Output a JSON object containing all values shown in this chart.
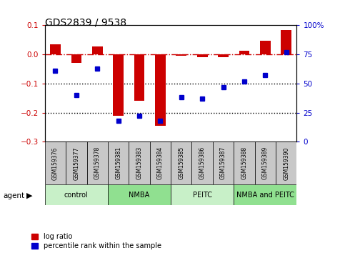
{
  "title": "GDS2839 / 9538",
  "samples": [
    "GSM159376",
    "GSM159377",
    "GSM159378",
    "GSM159381",
    "GSM159383",
    "GSM159384",
    "GSM159385",
    "GSM159386",
    "GSM159387",
    "GSM159388",
    "GSM159389",
    "GSM159390"
  ],
  "log_ratio": [
    0.035,
    -0.03,
    0.028,
    -0.21,
    -0.16,
    -0.245,
    -0.005,
    -0.01,
    -0.01,
    0.012,
    0.048,
    0.085
  ],
  "percentile_rank": [
    61,
    40,
    63,
    18,
    22,
    18,
    38,
    37,
    47,
    52,
    57,
    77
  ],
  "groups": [
    {
      "label": "control",
      "start": 0,
      "end": 3,
      "color": "#c8f0c8"
    },
    {
      "label": "NMBA",
      "start": 3,
      "end": 6,
      "color": "#90e090"
    },
    {
      "label": "PEITC",
      "start": 6,
      "end": 9,
      "color": "#c8f0c8"
    },
    {
      "label": "NMBA and PEITC",
      "start": 9,
      "end": 12,
      "color": "#90e090"
    }
  ],
  "ylim_left": [
    -0.3,
    0.1
  ],
  "ylim_right": [
    0,
    100
  ],
  "bar_color": "#cc0000",
  "dot_color": "#0000cc",
  "hline_color": "#cc0000",
  "dotted_color": "black",
  "background_color": "white",
  "tick_color_left": "#cc0000",
  "tick_color_right": "#0000cc",
  "yticks_left": [
    -0.3,
    -0.2,
    -0.1,
    0.0,
    0.1
  ],
  "yticks_right": [
    0,
    25,
    50,
    75,
    100
  ],
  "legend_items": [
    "log ratio",
    "percentile rank within the sample"
  ],
  "agent_label": "agent",
  "label_box_color": "#c8c8c8"
}
